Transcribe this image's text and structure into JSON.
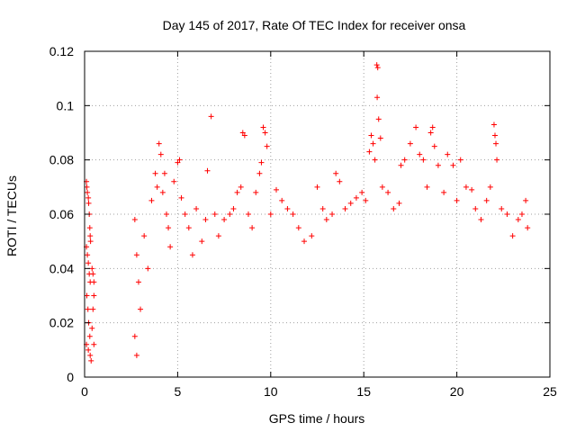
{
  "chart_data": {
    "type": "scatter",
    "title": "Day 145 of 2017, Rate Of TEC Index for receiver onsa",
    "xlabel": "GPS time / hours",
    "ylabel": "ROTI / TECUs",
    "xlim": [
      0,
      25
    ],
    "ylim": [
      0,
      0.12
    ],
    "xticks": [
      "0",
      "5",
      "10",
      "15",
      "20",
      "25"
    ],
    "yticks": [
      "0",
      "0.02",
      "0.04",
      "0.06",
      "0.08",
      "0.1",
      "0.12"
    ],
    "grid": true,
    "marker": "+",
    "color": "#ff0000",
    "points": [
      [
        0.1,
        0.072
      ],
      [
        0.12,
        0.07
      ],
      [
        0.15,
        0.068
      ],
      [
        0.2,
        0.066
      ],
      [
        0.22,
        0.064
      ],
      [
        0.25,
        0.06
      ],
      [
        0.28,
        0.055
      ],
      [
        0.3,
        0.052
      ],
      [
        0.32,
        0.05
      ],
      [
        0.1,
        0.048
      ],
      [
        0.15,
        0.045
      ],
      [
        0.2,
        0.042
      ],
      [
        0.25,
        0.038
      ],
      [
        0.3,
        0.035
      ],
      [
        0.12,
        0.03
      ],
      [
        0.18,
        0.025
      ],
      [
        0.22,
        0.02
      ],
      [
        0.28,
        0.015
      ],
      [
        0.1,
        0.012
      ],
      [
        0.2,
        0.01
      ],
      [
        0.3,
        0.008
      ],
      [
        0.4,
        0.04
      ],
      [
        0.45,
        0.038
      ],
      [
        0.5,
        0.035
      ],
      [
        0.5,
        0.03
      ],
      [
        0.45,
        0.025
      ],
      [
        0.4,
        0.018
      ],
      [
        0.5,
        0.012
      ],
      [
        0.35,
        0.006
      ],
      [
        2.7,
        0.058
      ],
      [
        2.8,
        0.045
      ],
      [
        2.9,
        0.035
      ],
      [
        3.0,
        0.025
      ],
      [
        2.7,
        0.015
      ],
      [
        2.8,
        0.008
      ],
      [
        3.2,
        0.052
      ],
      [
        3.4,
        0.04
      ],
      [
        3.6,
        0.065
      ],
      [
        3.8,
        0.075
      ],
      [
        3.9,
        0.07
      ],
      [
        4.0,
        0.086
      ],
      [
        4.1,
        0.082
      ],
      [
        4.2,
        0.068
      ],
      [
        4.3,
        0.075
      ],
      [
        4.4,
        0.06
      ],
      [
        4.5,
        0.055
      ],
      [
        4.6,
        0.048
      ],
      [
        4.8,
        0.072
      ],
      [
        5.0,
        0.079
      ],
      [
        5.1,
        0.08
      ],
      [
        5.2,
        0.066
      ],
      [
        5.4,
        0.06
      ],
      [
        5.6,
        0.055
      ],
      [
        5.8,
        0.045
      ],
      [
        6.0,
        0.062
      ],
      [
        6.3,
        0.05
      ],
      [
        6.5,
        0.058
      ],
      [
        6.6,
        0.076
      ],
      [
        6.8,
        0.096
      ],
      [
        7.0,
        0.06
      ],
      [
        7.2,
        0.052
      ],
      [
        7.5,
        0.058
      ],
      [
        7.8,
        0.06
      ],
      [
        8.0,
        0.062
      ],
      [
        8.2,
        0.068
      ],
      [
        8.4,
        0.07
      ],
      [
        8.5,
        0.09
      ],
      [
        8.6,
        0.089
      ],
      [
        8.8,
        0.06
      ],
      [
        9.0,
        0.055
      ],
      [
        9.2,
        0.068
      ],
      [
        9.4,
        0.075
      ],
      [
        9.5,
        0.079
      ],
      [
        9.6,
        0.092
      ],
      [
        9.7,
        0.09
      ],
      [
        9.8,
        0.085
      ],
      [
        10.0,
        0.06
      ],
      [
        10.3,
        0.069
      ],
      [
        10.6,
        0.065
      ],
      [
        10.9,
        0.062
      ],
      [
        11.2,
        0.06
      ],
      [
        11.5,
        0.055
      ],
      [
        11.8,
        0.05
      ],
      [
        12.2,
        0.052
      ],
      [
        12.5,
        0.07
      ],
      [
        12.8,
        0.062
      ],
      [
        13.0,
        0.058
      ],
      [
        13.3,
        0.06
      ],
      [
        13.5,
        0.075
      ],
      [
        13.7,
        0.072
      ],
      [
        14.0,
        0.062
      ],
      [
        14.3,
        0.064
      ],
      [
        14.6,
        0.066
      ],
      [
        14.9,
        0.068
      ],
      [
        15.1,
        0.065
      ],
      [
        15.3,
        0.083
      ],
      [
        15.4,
        0.089
      ],
      [
        15.5,
        0.086
      ],
      [
        15.6,
        0.08
      ],
      [
        15.7,
        0.115
      ],
      [
        15.75,
        0.114
      ],
      [
        15.72,
        0.103
      ],
      [
        15.8,
        0.095
      ],
      [
        15.9,
        0.088
      ],
      [
        16.0,
        0.07
      ],
      [
        16.3,
        0.068
      ],
      [
        16.6,
        0.062
      ],
      [
        16.9,
        0.064
      ],
      [
        17.0,
        0.078
      ],
      [
        17.2,
        0.08
      ],
      [
        17.5,
        0.086
      ],
      [
        17.8,
        0.092
      ],
      [
        18.0,
        0.082
      ],
      [
        18.2,
        0.08
      ],
      [
        18.4,
        0.07
      ],
      [
        18.6,
        0.09
      ],
      [
        18.7,
        0.092
      ],
      [
        18.8,
        0.085
      ],
      [
        19.0,
        0.078
      ],
      [
        19.3,
        0.068
      ],
      [
        19.5,
        0.082
      ],
      [
        19.8,
        0.078
      ],
      [
        20.0,
        0.065
      ],
      [
        20.2,
        0.08
      ],
      [
        20.5,
        0.07
      ],
      [
        20.8,
        0.069
      ],
      [
        21.0,
        0.062
      ],
      [
        21.3,
        0.058
      ],
      [
        21.6,
        0.065
      ],
      [
        21.8,
        0.07
      ],
      [
        22.0,
        0.093
      ],
      [
        22.05,
        0.089
      ],
      [
        22.1,
        0.086
      ],
      [
        22.15,
        0.08
      ],
      [
        22.4,
        0.062
      ],
      [
        22.7,
        0.06
      ],
      [
        23.0,
        0.052
      ],
      [
        23.3,
        0.058
      ],
      [
        23.5,
        0.06
      ],
      [
        23.7,
        0.065
      ],
      [
        23.8,
        0.055
      ]
    ]
  }
}
